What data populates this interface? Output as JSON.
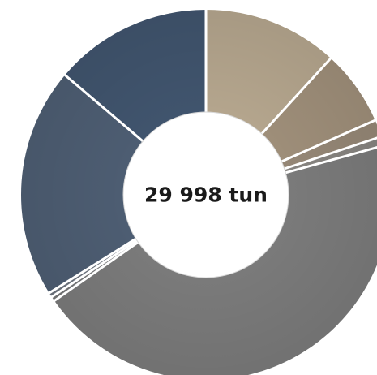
{
  "chart_data": {
    "type": "pie",
    "variant": "donut",
    "center_label": "29 998 tun",
    "start_angle_deg": 0,
    "direction": "clockwise",
    "slices": [
      {
        "value": 11.8,
        "color": "#b4a58d"
      },
      {
        "value": 6.6,
        "color": "#9e8e79"
      },
      {
        "value": 1.5,
        "color": "#958776"
      },
      {
        "value": 0.8,
        "color": "#878480"
      },
      {
        "value": 44.6,
        "color": "#7a7a7a"
      },
      {
        "value": 0.4,
        "color": "#767778"
      },
      {
        "value": 0.4,
        "color": "#6d747e"
      },
      {
        "value": 20.1,
        "color": "#4d5d72"
      },
      {
        "value": 13.8,
        "color": "#40546d"
      }
    ]
  }
}
